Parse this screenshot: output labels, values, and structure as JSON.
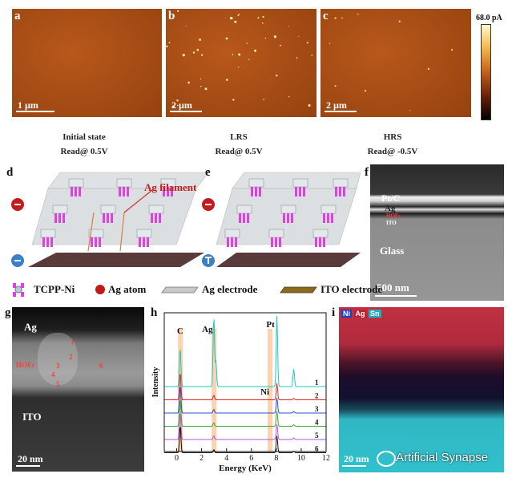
{
  "panels": {
    "a": {
      "letter": "a",
      "scale": "1 µm"
    },
    "b": {
      "letter": "b",
      "scale": "2 µm"
    },
    "c": {
      "letter": "c",
      "scale": "2 µm"
    },
    "d": {
      "letter": "d",
      "filament_label": "Ag filament"
    },
    "e": {
      "letter": "e"
    },
    "f": {
      "letter": "f",
      "layers": [
        "Pt/C",
        "Ag",
        "HOFs",
        "ITO"
      ],
      "glass": "Glass",
      "scale": "500 nm"
    },
    "g": {
      "letter": "g",
      "ag": "Ag",
      "hofs": "HOFs",
      "ito": "ITO",
      "scale": "20 nm",
      "points": [
        "1",
        "2",
        "3",
        "4",
        "5",
        "6"
      ]
    },
    "h": {
      "letter": "h"
    },
    "i": {
      "letter": "i",
      "scale": "20 nm",
      "legend": [
        "Ni",
        "Ag",
        "Sn"
      ]
    }
  },
  "colorbar": {
    "max_label": "68.0 pA",
    "colors": [
      "#fff8cc",
      "#f2b54a",
      "#c2601a",
      "#6b2208",
      "#000000"
    ]
  },
  "captions": [
    {
      "state": "Initial state",
      "read": "Read@ 0.5V"
    },
    {
      "state": "LRS",
      "read": "Read@ 0.5V"
    },
    {
      "state": "HRS",
      "read": "Read@ -0.5V"
    }
  ],
  "legend": {
    "tcpp": "TCPP-Ni",
    "ag_atom": "Ag atom",
    "ag_electrode": "Ag electrode",
    "ito_electrode": "ITO electrode"
  },
  "chart_data": {
    "type": "line",
    "xlabel": "Energy (KeV)",
    "ylabel": "Intensity",
    "xlim": [
      -1,
      12
    ],
    "xticks": [
      0,
      2,
      4,
      6,
      8,
      10,
      12
    ],
    "peak_labels": [
      {
        "text": "C",
        "x": 0.28
      },
      {
        "text": "Ag",
        "x": 2.98
      },
      {
        "text": "Pt",
        "x": 8.05
      },
      {
        "text": "Ni",
        "x": 7.47
      }
    ],
    "highlight_bands": [
      [
        0.1,
        0.5
      ],
      [
        2.8,
        3.2
      ],
      [
        7.3,
        7.7
      ]
    ],
    "series": [
      {
        "name": "1",
        "color": "#1fc7c0",
        "peaks": [
          [
            0.28,
            0.55
          ],
          [
            2.98,
            1.0
          ],
          [
            3.15,
            0.35
          ],
          [
            8.05,
            1.0
          ],
          [
            9.4,
            0.25
          ]
        ]
      },
      {
        "name": "2",
        "color": "#e02828",
        "peaks": [
          [
            0.28,
            0.9
          ],
          [
            2.98,
            0.15
          ],
          [
            8.05,
            0.55
          ],
          [
            9.4,
            0.05
          ]
        ]
      },
      {
        "name": "3",
        "color": "#2a4fd0",
        "peaks": [
          [
            0.28,
            0.9
          ],
          [
            2.98,
            0.12
          ],
          [
            8.05,
            0.5
          ],
          [
            9.4,
            0.05
          ]
        ]
      },
      {
        "name": "4",
        "color": "#3aa83a",
        "peaks": [
          [
            0.28,
            0.9
          ],
          [
            2.98,
            0.12
          ],
          [
            8.05,
            0.5
          ],
          [
            9.4,
            0.05
          ]
        ]
      },
      {
        "name": "5",
        "color": "#b25ad4",
        "peaks": [
          [
            0.28,
            0.9
          ],
          [
            2.98,
            0.12
          ],
          [
            8.05,
            0.5
          ],
          [
            9.4,
            0.05
          ]
        ]
      },
      {
        "name": "6",
        "color": "#111111",
        "peaks": [
          [
            0.28,
            0.9
          ],
          [
            2.98,
            0.1
          ],
          [
            8.05,
            0.55
          ],
          [
            9.4,
            0.05
          ]
        ]
      }
    ]
  },
  "watermark": "Artificial Synapse"
}
